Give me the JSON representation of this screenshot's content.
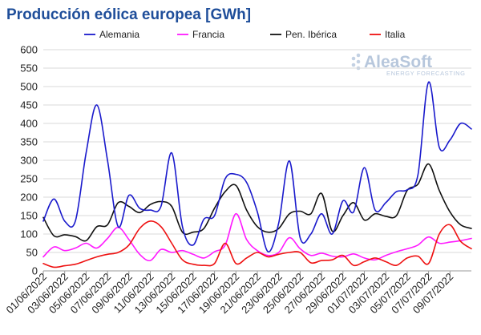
{
  "chart_data": {
    "type": "line",
    "title": "Producción eólica europea [GWh]",
    "xlabel": "",
    "ylabel": "",
    "ylim": [
      0,
      600
    ],
    "yticks": [
      0,
      50,
      100,
      150,
      200,
      250,
      300,
      350,
      400,
      450,
      500,
      550,
      600
    ],
    "grid": true,
    "legend_position": "top",
    "watermark": {
      "main": "AleaSoft",
      "sub": "ENERGY FORECASTING"
    },
    "x": [
      "01/06/2022",
      "02/06/2022",
      "03/06/2022",
      "04/06/2022",
      "05/06/2022",
      "06/06/2022",
      "07/06/2022",
      "08/06/2022",
      "09/06/2022",
      "10/06/2022",
      "11/06/2022",
      "12/06/2022",
      "13/06/2022",
      "14/06/2022",
      "15/06/2022",
      "16/06/2022",
      "17/06/2022",
      "18/06/2022",
      "19/06/2022",
      "20/06/2022",
      "21/06/2022",
      "22/06/2022",
      "23/06/2022",
      "24/06/2022",
      "25/06/2022",
      "26/06/2022",
      "27/06/2022",
      "28/06/2022",
      "29/06/2022",
      "30/06/2022",
      "01/07/2022",
      "02/07/2022",
      "03/07/2022",
      "04/07/2022",
      "05/07/2022",
      "06/07/2022",
      "07/07/2022",
      "08/07/2022",
      "09/07/2022",
      "10/07/2022",
      "11/07/2022"
    ],
    "x_tick_labels": [
      "01/06/2022",
      "03/06/2022",
      "05/06/2022",
      "07/06/2022",
      "09/06/2022",
      "11/06/2022",
      "13/06/2022",
      "15/06/2022",
      "17/06/2022",
      "19/06/2022",
      "21/06/2022",
      "23/06/2022",
      "25/06/2022",
      "27/06/2022",
      "29/06/2022",
      "01/07/2022",
      "03/07/2022",
      "05/07/2022",
      "07/07/2022",
      "09/07/2022"
    ],
    "series": [
      {
        "name": "Alemania",
        "color": "#1a1acc",
        "values": [
          135,
          195,
          135,
          135,
          320,
          450,
          300,
          120,
          205,
          170,
          165,
          175,
          320,
          120,
          70,
          140,
          150,
          250,
          262,
          240,
          160,
          52,
          130,
          298,
          90,
          100,
          155,
          100,
          190,
          160,
          280,
          165,
          185,
          215,
          220,
          260,
          512,
          335,
          355,
          400,
          385
        ]
      },
      {
        "name": "Francia",
        "color": "#ff1aff",
        "values": [
          38,
          65,
          55,
          62,
          75,
          62,
          88,
          118,
          85,
          45,
          28,
          58,
          50,
          55,
          45,
          35,
          52,
          70,
          155,
          85,
          55,
          42,
          50,
          90,
          60,
          42,
          48,
          40,
          38,
          46,
          35,
          30,
          42,
          52,
          60,
          70,
          92,
          75,
          78,
          82,
          88
        ]
      },
      {
        "name": "Pen. Ibérica",
        "color": "#111111",
        "values": [
          145,
          95,
          98,
          93,
          82,
          120,
          125,
          185,
          175,
          158,
          180,
          188,
          175,
          105,
          105,
          115,
          170,
          215,
          232,
          165,
          120,
          105,
          115,
          155,
          162,
          155,
          210,
          108,
          150,
          185,
          138,
          155,
          148,
          150,
          218,
          235,
          290,
          218,
          160,
          125,
          115
        ]
      },
      {
        "name": "Italia",
        "color": "#ee1111",
        "values": [
          20,
          10,
          14,
          18,
          28,
          38,
          45,
          50,
          70,
          115,
          135,
          120,
          75,
          30,
          18,
          15,
          20,
          75,
          20,
          35,
          50,
          38,
          45,
          50,
          50,
          22,
          28,
          30,
          42,
          15,
          25,
          35,
          25,
          15,
          35,
          40,
          20,
          100,
          125,
          80,
          60
        ]
      }
    ]
  }
}
